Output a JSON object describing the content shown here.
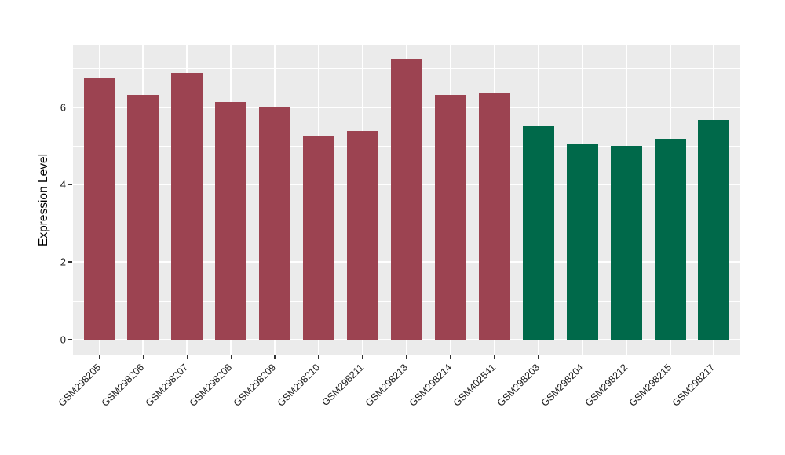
{
  "chart_data": {
    "type": "bar",
    "title": "",
    "xlabel": "",
    "ylabel": "Expression Level",
    "ylim": [
      0,
      7.61
    ],
    "yticks": [
      0,
      2,
      4,
      6
    ],
    "minor_gridlines": [
      1,
      3,
      5,
      7
    ],
    "grid": "on",
    "legend_position": "none",
    "plot_background_color": "#ebebeb",
    "gridline_color": "#ffffff",
    "axis_text_color": "#1a1a1a",
    "categories": [
      "GSM298205",
      "GSM298206",
      "GSM298207",
      "GSM298208",
      "GSM298209",
      "GSM298210",
      "GSM298211",
      "GSM298213",
      "GSM298214",
      "GSM402541",
      "GSM298203",
      "GSM298204",
      "GSM298212",
      "GSM298215",
      "GSM298217"
    ],
    "values": [
      6.74,
      6.32,
      6.88,
      6.13,
      5.99,
      5.26,
      5.39,
      7.25,
      6.32,
      6.36,
      5.53,
      5.05,
      5.0,
      5.18,
      5.66
    ],
    "bar_groups": [
      "maroon",
      "maroon",
      "maroon",
      "maroon",
      "maroon",
      "maroon",
      "maroon",
      "maroon",
      "maroon",
      "maroon",
      "green",
      "green",
      "green",
      "green",
      "green"
    ],
    "group_colors": {
      "maroon": "#9c4351",
      "green": "#00694a"
    }
  }
}
